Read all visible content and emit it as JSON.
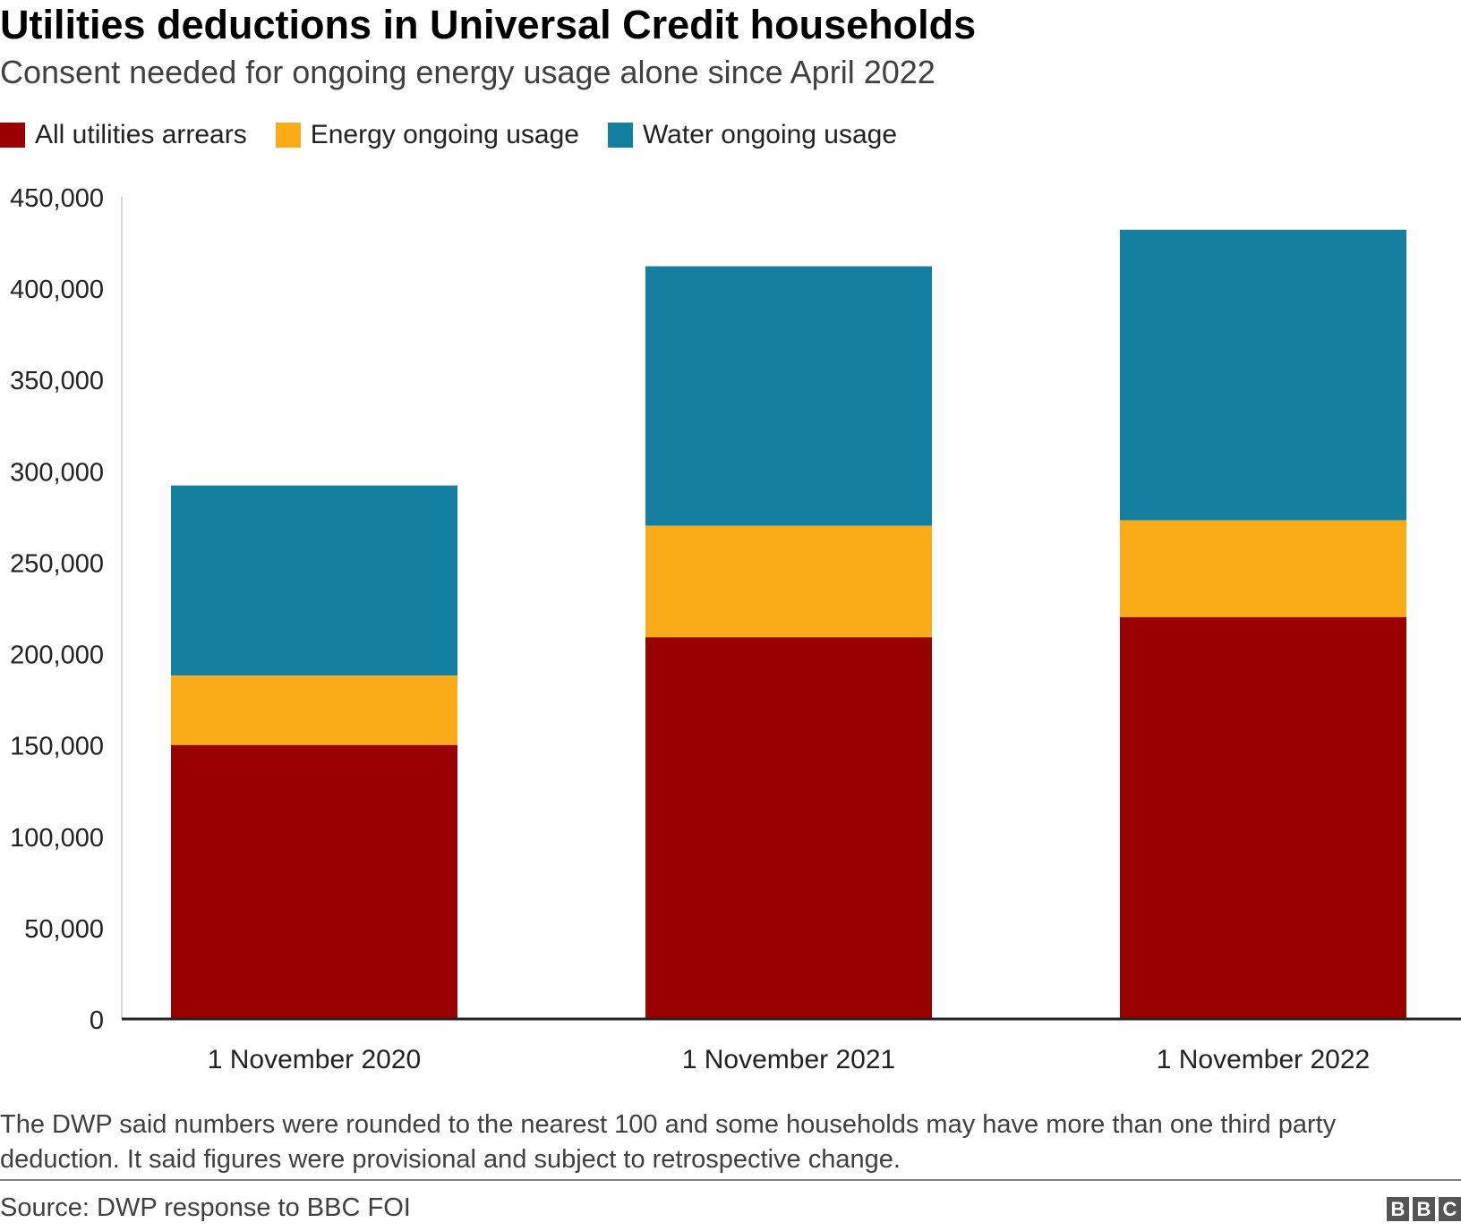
{
  "title": "Utilities deductions in Universal Credit households",
  "subtitle": "Consent needed for ongoing energy usage alone since April 2022",
  "legend": [
    {
      "label": "All utilities arrears",
      "color": "#990000"
    },
    {
      "label": "Energy ongoing usage",
      "color": "#FAAB18"
    },
    {
      "label": "Water ongoing usage",
      "color": "#1380A1"
    }
  ],
  "chart_data": {
    "type": "bar",
    "stacked": true,
    "categories": [
      "1 November 2020",
      "1 November 2021",
      "1 November 2022"
    ],
    "series": [
      {
        "name": "All utilities arrears",
        "color": "#990000",
        "values": [
          150000,
          209000,
          220000
        ]
      },
      {
        "name": "Energy ongoing usage",
        "color": "#FAAB18",
        "values": [
          38000,
          61000,
          53000
        ]
      },
      {
        "name": "Water ongoing usage",
        "color": "#1380A1",
        "values": [
          104000,
          142000,
          159000
        ]
      }
    ],
    "ylim": [
      0,
      450000
    ],
    "yticks": [
      "0",
      "50,000",
      "100,000",
      "150,000",
      "200,000",
      "250,000",
      "300,000",
      "350,000",
      "400,000",
      "450,000"
    ],
    "grid": false,
    "legend_position": "top-left"
  },
  "note": "The DWP said numbers were rounded to the nearest 100 and some households may have more than one third party deduction. It said figures were provisional and subject to retrospective change.",
  "source": "Source: DWP response to BBC FOI",
  "logo": [
    "B",
    "B",
    "C"
  ]
}
